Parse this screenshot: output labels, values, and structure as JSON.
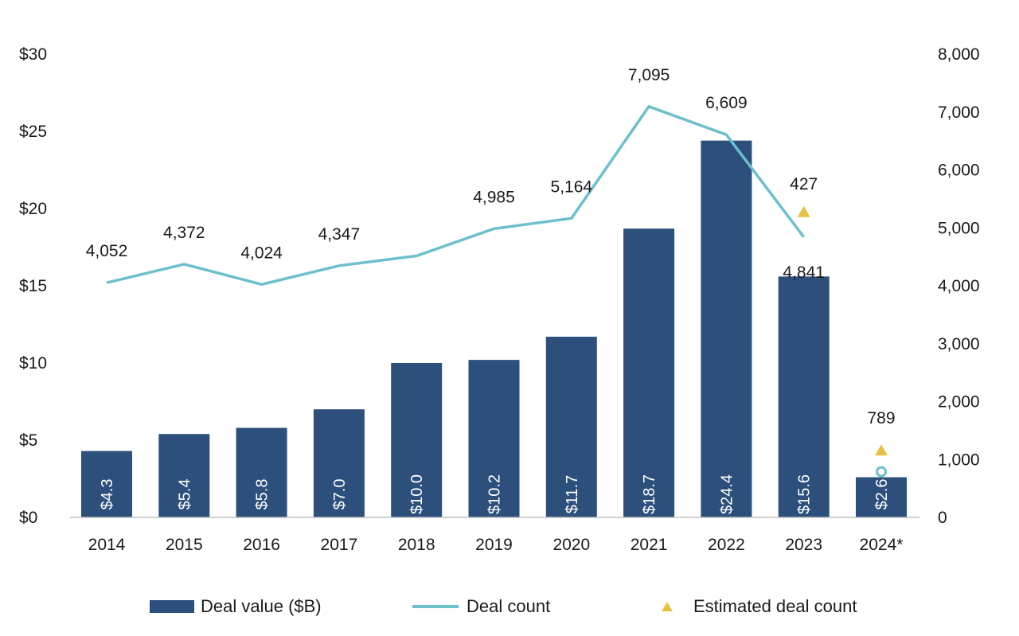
{
  "chart_data": {
    "type": "bar",
    "categories": [
      "2014",
      "2015",
      "2016",
      "2017",
      "2018",
      "2019",
      "2020",
      "2021",
      "2022",
      "2023",
      "2024*"
    ],
    "series": [
      {
        "name": "Deal value ($B)",
        "type": "bar",
        "axis": "left",
        "values": [
          4.3,
          5.4,
          5.8,
          7.0,
          10.0,
          10.2,
          11.7,
          18.7,
          24.4,
          15.6,
          2.6
        ],
        "labels": [
          "$4.3",
          "$5.4",
          "$5.8",
          "$7.0",
          "$10.0",
          "$10.2",
          "$11.7",
          "$18.7",
          "$24.4",
          "$15.6",
          "$2.6"
        ]
      },
      {
        "name": "Deal count",
        "type": "line",
        "axis": "right",
        "values": [
          4052,
          4372,
          4024,
          4347,
          4516,
          4985,
          5164,
          7095,
          6609,
          4841,
          789
        ],
        "labels": [
          "4,052",
          "4,372",
          "4,024",
          "4,347",
          null,
          "4,985",
          "5,164",
          "7,095",
          "6,609",
          "4,841",
          "789"
        ]
      },
      {
        "name": "Estimated deal count",
        "type": "scatter",
        "axis": "right",
        "points": [
          {
            "category": "2023",
            "value": 5268,
            "label": "427"
          },
          {
            "category": "2024*",
            "value": 1152,
            "label": null
          }
        ]
      }
    ],
    "y_left": {
      "ylim": [
        0,
        30
      ],
      "ticks": [
        "$0",
        "$5",
        "$10",
        "$15",
        "$20",
        "$25",
        "$30"
      ]
    },
    "y_right": {
      "ylim": [
        0,
        8000
      ],
      "ticks": [
        "0",
        "1,000",
        "2,000",
        "3,000",
        "4,000",
        "5,000",
        "6,000",
        "7,000",
        "8,000"
      ]
    },
    "grid": false,
    "legend_position": "bottom",
    "colors": {
      "bar": "#2c4f7c",
      "line": "#6cbfcb",
      "estimate": "#e8c244",
      "axis": "#bfbfbf"
    }
  }
}
